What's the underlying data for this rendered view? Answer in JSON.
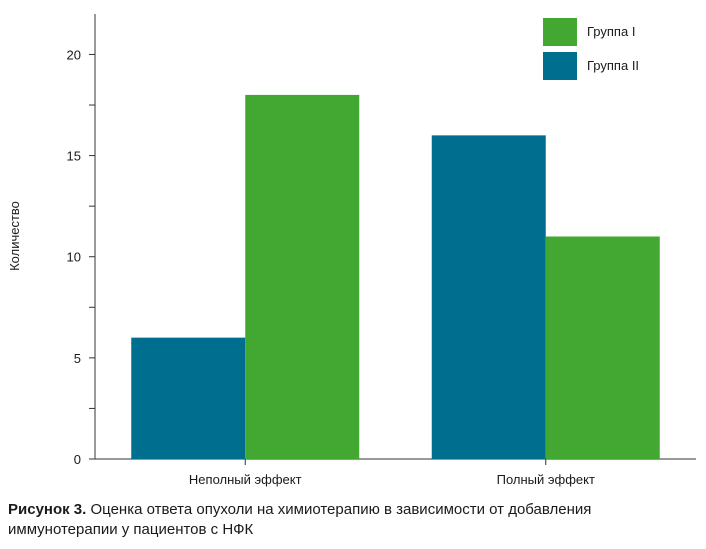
{
  "chart_data": {
    "type": "bar",
    "categories": [
      "Неполный эффект",
      "Полный эффект"
    ],
    "series": [
      {
        "name": "Группа II",
        "values": [
          6,
          16
        ],
        "color": "#006e8e"
      },
      {
        "name": "Группа I",
        "values": [
          18,
          11
        ],
        "color": "#43a831"
      }
    ],
    "legend_order": [
      "Группа I",
      "Группа II"
    ],
    "legend_position": "top-right",
    "ylabel": "Количество",
    "xlabel": "",
    "ylim": [
      0,
      22
    ],
    "yticks": [
      0,
      5,
      10,
      15,
      20
    ],
    "grid": false
  },
  "caption": {
    "label": "Рисунок 3.",
    "text": " Оценка ответа опухоли на химиотерапию в зависимости от добавления иммунотерапии у пациентов с НФК"
  }
}
